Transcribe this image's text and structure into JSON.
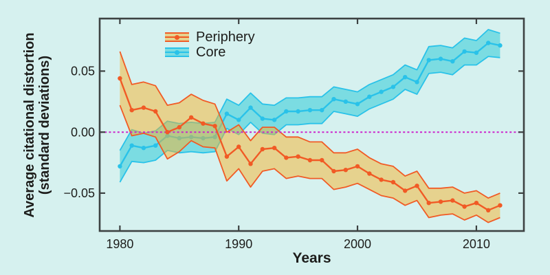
{
  "figure": {
    "background": "#d6f1ef",
    "text_color": "#1d1d1b",
    "axis_color": "#3d4242"
  },
  "y_axis": {
    "label_line1": "Average citational distortion",
    "label_line2": "(standard deviations)",
    "tick_labels": [
      "0.05",
      "0.00",
      "−0.05"
    ],
    "tick_values": [
      0.05,
      0.0,
      -0.05
    ]
  },
  "x_axis": {
    "label": "Years",
    "tick_labels": [
      "1980",
      "1990",
      "2000",
      "2010"
    ],
    "tick_values": [
      1980,
      1990,
      2000,
      2010
    ]
  },
  "legend": {
    "items": [
      {
        "label": "Periphery"
      },
      {
        "label": "Core"
      }
    ]
  },
  "chart_data": {
    "type": "line",
    "title": "",
    "xlabel": "Years",
    "ylabel": "Average citational distortion (standard deviations)",
    "xlim": [
      1978.3,
      2014.0
    ],
    "ylim": [
      -0.081,
      0.093
    ],
    "grid": false,
    "legend_position": "top-left-inside",
    "zero_line": {
      "y": 0,
      "color": "#cc22cc",
      "style": "dashed"
    },
    "x": [
      1980,
      1981,
      1982,
      1983,
      1984,
      1985,
      1986,
      1987,
      1988,
      1989,
      1990,
      1991,
      1992,
      1993,
      1994,
      1995,
      1996,
      1997,
      1998,
      1999,
      2000,
      2001,
      2002,
      2003,
      2004,
      2005,
      2006,
      2007,
      2008,
      2009,
      2010,
      2011,
      2012
    ],
    "series": [
      {
        "name": "Periphery",
        "line_color": "#f15a25",
        "band_fill": "#f5b32d",
        "band_opacity": 0.5,
        "values": [
          0.044,
          0.018,
          0.02,
          0.017,
          0.0,
          0.004,
          0.012,
          0.007,
          0.005,
          -0.02,
          -0.012,
          -0.026,
          -0.014,
          -0.013,
          -0.021,
          -0.02,
          -0.023,
          -0.023,
          -0.032,
          -0.031,
          -0.028,
          -0.034,
          -0.039,
          -0.041,
          -0.048,
          -0.044,
          -0.058,
          -0.057,
          -0.056,
          -0.061,
          -0.058,
          -0.064,
          -0.06
        ],
        "band_upper": [
          0.066,
          0.039,
          0.041,
          0.038,
          0.022,
          0.024,
          0.031,
          0.026,
          0.023,
          0.0,
          0.006,
          -0.007,
          0.004,
          0.004,
          -0.004,
          -0.004,
          -0.008,
          -0.008,
          -0.017,
          -0.017,
          -0.014,
          -0.021,
          -0.026,
          -0.028,
          -0.036,
          -0.032,
          -0.046,
          -0.046,
          -0.045,
          -0.05,
          -0.048,
          -0.054,
          -0.05
        ],
        "band_lower": [
          0.022,
          -0.003,
          -0.001,
          -0.004,
          -0.022,
          -0.016,
          -0.007,
          -0.012,
          -0.013,
          -0.04,
          -0.03,
          -0.045,
          -0.032,
          -0.03,
          -0.038,
          -0.036,
          -0.038,
          -0.038,
          -0.047,
          -0.045,
          -0.042,
          -0.047,
          -0.052,
          -0.054,
          -0.06,
          -0.056,
          -0.07,
          -0.068,
          -0.067,
          -0.072,
          -0.068,
          -0.074,
          -0.07
        ]
      },
      {
        "name": "Core",
        "line_color": "#29c2e9",
        "band_fill": "#31cbd7",
        "band_opacity": 0.55,
        "values": [
          -0.028,
          -0.011,
          -0.013,
          -0.011,
          -0.003,
          -0.005,
          -0.004,
          -0.005,
          -0.004,
          0.015,
          0.01,
          0.02,
          0.011,
          0.01,
          0.017,
          0.017,
          0.018,
          0.018,
          0.027,
          0.025,
          0.023,
          0.029,
          0.033,
          0.037,
          0.045,
          0.041,
          0.059,
          0.06,
          0.058,
          0.066,
          0.065,
          0.073,
          0.071
        ],
        "band_upper": [
          -0.015,
          0.002,
          -0.001,
          0.001,
          0.009,
          0.007,
          0.008,
          0.007,
          0.008,
          0.027,
          0.022,
          0.032,
          0.023,
          0.022,
          0.028,
          0.028,
          0.029,
          0.029,
          0.037,
          0.035,
          0.033,
          0.039,
          0.043,
          0.047,
          0.055,
          0.051,
          0.07,
          0.071,
          0.069,
          0.077,
          0.075,
          0.084,
          0.081
        ],
        "band_lower": [
          -0.041,
          -0.024,
          -0.025,
          -0.023,
          -0.015,
          -0.017,
          -0.016,
          -0.017,
          -0.016,
          0.003,
          -0.002,
          0.008,
          -0.001,
          -0.002,
          0.006,
          0.006,
          0.007,
          0.007,
          0.017,
          0.015,
          0.013,
          0.019,
          0.023,
          0.027,
          0.035,
          0.031,
          0.048,
          0.049,
          0.047,
          0.055,
          0.055,
          0.062,
          0.061
        ]
      }
    ]
  }
}
